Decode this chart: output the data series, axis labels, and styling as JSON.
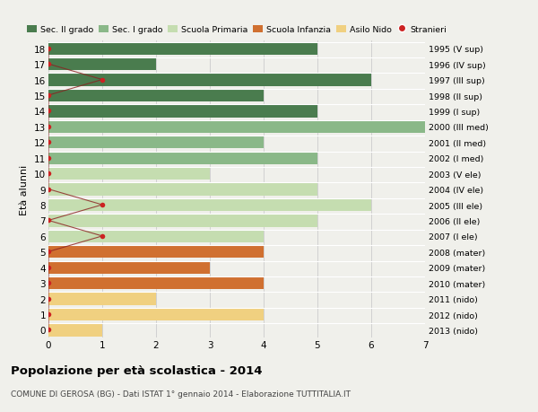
{
  "ages": [
    18,
    17,
    16,
    15,
    14,
    13,
    12,
    11,
    10,
    9,
    8,
    7,
    6,
    5,
    4,
    3,
    2,
    1,
    0
  ],
  "right_labels": [
    "1995 (V sup)",
    "1996 (IV sup)",
    "1997 (III sup)",
    "1998 (II sup)",
    "1999 (I sup)",
    "2000 (III med)",
    "2001 (II med)",
    "2002 (I med)",
    "2003 (V ele)",
    "2004 (IV ele)",
    "2005 (III ele)",
    "2006 (II ele)",
    "2007 (I ele)",
    "2008 (mater)",
    "2009 (mater)",
    "2010 (mater)",
    "2011 (nido)",
    "2012 (nido)",
    "2013 (nido)"
  ],
  "bar_values": [
    5,
    2,
    6,
    4,
    5,
    7,
    4,
    5,
    3,
    5,
    6,
    5,
    4,
    4,
    3,
    4,
    2,
    4,
    1
  ],
  "bar_colors": [
    "#4a7c4e",
    "#4a7c4e",
    "#4a7c4e",
    "#4a7c4e",
    "#4a7c4e",
    "#8ab888",
    "#8ab888",
    "#8ab888",
    "#c5ddb0",
    "#c5ddb0",
    "#c5ddb0",
    "#c5ddb0",
    "#c5ddb0",
    "#d07030",
    "#d07030",
    "#d07030",
    "#f0d080",
    "#f0d080",
    "#f0d080"
  ],
  "stranieri_x": [
    0,
    0,
    1,
    0,
    0,
    0,
    0,
    0,
    0,
    0,
    1,
    0,
    1,
    0,
    0,
    0,
    0,
    0,
    0
  ],
  "legend_labels": [
    "Sec. II grado",
    "Sec. I grado",
    "Scuola Primaria",
    "Scuola Infanzia",
    "Asilo Nido",
    "Stranieri"
  ],
  "legend_colors": [
    "#4a7c4e",
    "#8ab888",
    "#c5ddb0",
    "#d07030",
    "#f0d080",
    "#cc2222"
  ],
  "ylabel": "Età alunni",
  "title": "Popolazione per età scolastica - 2014",
  "subtitle": "COMUNE DI GEROSA (BG) - Dati ISTAT 1° gennaio 2014 - Elaborazione TUTTITALIA.IT",
  "xlim": [
    0,
    7
  ],
  "bg_color": "#f0f0eb",
  "grid_color": "#cccccc"
}
